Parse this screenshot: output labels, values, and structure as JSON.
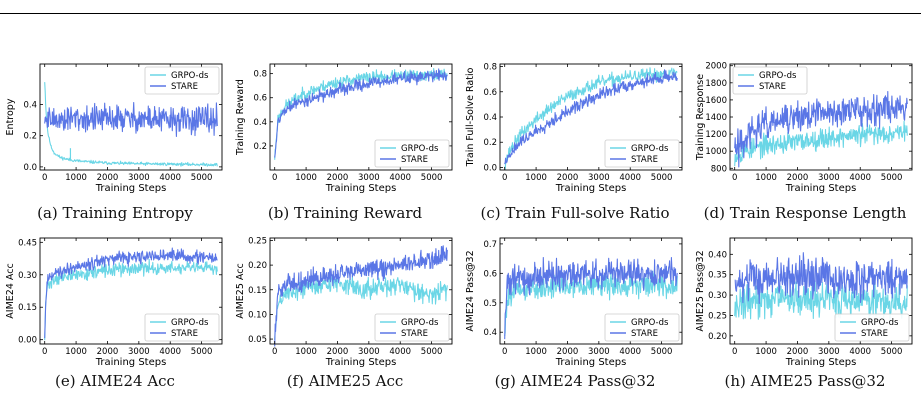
{
  "colors": {
    "grpo": "#6ad6e6",
    "stare": "#5a76e6"
  },
  "panels": [
    {
      "caption": "(a) Training Entropy",
      "chart_data": {
        "type": "line",
        "xlabel": "Training Steps",
        "ylabel": "Entropy",
        "xlim": [
          -150,
          5650
        ],
        "ylim": [
          -0.02,
          0.66
        ],
        "xticks": [
          0,
          1000,
          2000,
          3000,
          4000,
          5000
        ],
        "yticks": [
          0.0,
          0.2,
          0.4
        ],
        "ytick_labels": [
          "0.0",
          "0.2",
          "0.4"
        ],
        "legend": "top-right",
        "noise_seed": 11,
        "series": [
          {
            "name": "GRPO-ds",
            "x": [
              0,
              40,
              100,
              200,
              300,
              500,
              800,
              1200,
              2000,
              3000,
              4000,
              5000,
              5500
            ],
            "y": [
              0.55,
              0.36,
              0.22,
              0.13,
              0.09,
              0.06,
              0.045,
              0.035,
              0.025,
              0.02,
              0.018,
              0.015,
              0.014
            ],
            "noise": 0.006,
            "spike": {
              "x": 820,
              "y": 0.12
            }
          },
          {
            "name": "STARE",
            "x": [
              0,
              100,
              1000,
              2000,
              3000,
              4000,
              5000,
              5500
            ],
            "y": [
              0.3,
              0.3,
              0.31,
              0.31,
              0.31,
              0.3,
              0.3,
              0.3
            ],
            "noise": 0.055
          }
        ]
      }
    },
    {
      "caption": "(b) Training Reward",
      "chart_data": {
        "type": "line",
        "xlabel": "Training Steps",
        "ylabel": "Training Reward",
        "xlim": [
          -150,
          5650
        ],
        "ylim": [
          0,
          0.88
        ],
        "xticks": [
          0,
          1000,
          2000,
          3000,
          4000,
          5000
        ],
        "yticks": [
          0.2,
          0.4,
          0.6,
          0.8
        ],
        "ytick_labels": [
          "0.2",
          "0.4",
          "0.6",
          "0.8"
        ],
        "legend": "bottom-right",
        "noise_seed": 23,
        "series": [
          {
            "name": "GRPO-ds",
            "x": [
              0,
              100,
              300,
              600,
              1000,
              1500,
              2000,
              2500,
              3000,
              4000,
              5000,
              5500
            ],
            "y": [
              0.1,
              0.42,
              0.52,
              0.58,
              0.64,
              0.69,
              0.73,
              0.75,
              0.77,
              0.78,
              0.79,
              0.79
            ],
            "noise": 0.03
          },
          {
            "name": "STARE",
            "x": [
              0,
              100,
              300,
              600,
              1000,
              1500,
              2000,
              2500,
              3000,
              4000,
              5000,
              5500
            ],
            "y": [
              0.1,
              0.4,
              0.49,
              0.54,
              0.58,
              0.62,
              0.66,
              0.69,
              0.72,
              0.76,
              0.78,
              0.79
            ],
            "noise": 0.03
          }
        ]
      }
    },
    {
      "caption": "(c) Train Full-solve Ratio",
      "chart_data": {
        "type": "line",
        "xlabel": "Training Steps",
        "ylabel": "Train Full-Solve Ratio",
        "xlim": [
          -150,
          5650
        ],
        "ylim": [
          -0.02,
          0.82
        ],
        "xticks": [
          0,
          1000,
          2000,
          3000,
          4000,
          5000
        ],
        "yticks": [
          0.0,
          0.2,
          0.4,
          0.6,
          0.8
        ],
        "ytick_labels": [
          "0.0",
          "0.2",
          "0.4",
          "0.6",
          "0.8"
        ],
        "legend": "bottom-right",
        "noise_seed": 37,
        "series": [
          {
            "name": "GRPO-ds",
            "x": [
              0,
              200,
              500,
              1000,
              1500,
              2000,
              2500,
              3000,
              3500,
              4000,
              5000,
              5500
            ],
            "y": [
              0.03,
              0.15,
              0.26,
              0.38,
              0.48,
              0.56,
              0.62,
              0.67,
              0.7,
              0.72,
              0.74,
              0.75
            ],
            "noise": 0.03
          },
          {
            "name": "STARE",
            "x": [
              0,
              200,
              500,
              1000,
              1500,
              2000,
              2500,
              3000,
              3500,
              4000,
              5000,
              5500
            ],
            "y": [
              0.03,
              0.12,
              0.2,
              0.29,
              0.37,
              0.44,
              0.51,
              0.57,
              0.62,
              0.66,
              0.71,
              0.73
            ],
            "noise": 0.03
          }
        ]
      }
    },
    {
      "caption": "(d) Train Response Length",
      "chart_data": {
        "type": "line",
        "xlabel": "Training Steps",
        "ylabel": "Training Response",
        "xlim": [
          -150,
          5650
        ],
        "ylim": [
          780,
          2020
        ],
        "xticks": [
          0,
          1000,
          2000,
          3000,
          4000,
          5000
        ],
        "yticks": [
          800,
          1000,
          1200,
          1400,
          1600,
          1800,
          2000
        ],
        "ytick_labels": [
          "800",
          "1000",
          "1200",
          "1400",
          "1600",
          "1800",
          "2000"
        ],
        "legend": "top-left",
        "noise_seed": 53,
        "series": [
          {
            "name": "GRPO-ds",
            "x": [
              0,
              300,
              1000,
              2000,
              3000,
              4000,
              5000,
              5500
            ],
            "y": [
              950,
              1000,
              1070,
              1110,
              1160,
              1190,
              1220,
              1240
            ],
            "noise": 75
          },
          {
            "name": "STARE",
            "x": [
              0,
              300,
              800,
              1500,
              2500,
              3500,
              4500,
              5500
            ],
            "y": [
              980,
              1150,
              1280,
              1360,
              1430,
              1470,
              1500,
              1520
            ],
            "noise": 110
          }
        ]
      }
    },
    {
      "caption": "(e) AIME24 Acc",
      "chart_data": {
        "type": "line",
        "xlabel": "Training Steps",
        "ylabel": "AIME24 Acc",
        "xlim": [
          -150,
          5650
        ],
        "ylim": [
          -0.02,
          0.47
        ],
        "xticks": [
          0,
          1000,
          2000,
          3000,
          4000,
          5000
        ],
        "yticks": [
          0.0,
          0.15,
          0.3,
          0.45
        ],
        "ytick_labels": [
          "0.00",
          "0.15",
          "0.30",
          "0.45"
        ],
        "legend": "bottom-right",
        "noise_seed": 71,
        "series": [
          {
            "name": "GRPO-ds",
            "x": [
              0,
              40,
              100,
              300,
              1000,
              2000,
              3000,
              4000,
              5000,
              5500
            ],
            "y": [
              0.0,
              0.2,
              0.25,
              0.28,
              0.3,
              0.32,
              0.33,
              0.33,
              0.33,
              0.33
            ],
            "noise": 0.018
          },
          {
            "name": "STARE",
            "x": [
              0,
              40,
              100,
              300,
              1000,
              2000,
              3000,
              4000,
              5000,
              5500
            ],
            "y": [
              0.0,
              0.22,
              0.28,
              0.31,
              0.34,
              0.37,
              0.38,
              0.39,
              0.38,
              0.37
            ],
            "noise": 0.018
          }
        ]
      }
    },
    {
      "caption": "(f) AIME25 Acc",
      "chart_data": {
        "type": "line",
        "xlabel": "Training Steps",
        "ylabel": "AIME25 Acc",
        "xlim": [
          -150,
          5650
        ],
        "ylim": [
          0.04,
          0.255
        ],
        "xticks": [
          0,
          1000,
          2000,
          3000,
          4000,
          5000
        ],
        "yticks": [
          0.05,
          0.1,
          0.15,
          0.2,
          0.25
        ],
        "ytick_labels": [
          "0.05",
          "0.10",
          "0.15",
          "0.20",
          "0.25"
        ],
        "legend": "bottom-right",
        "noise_seed": 89,
        "series": [
          {
            "name": "GRPO-ds",
            "x": [
              0,
              100,
              300,
              1000,
              2000,
              2500,
              3000,
              4000,
              5000,
              5500
            ],
            "y": [
              0.05,
              0.12,
              0.14,
              0.155,
              0.165,
              0.155,
              0.15,
              0.16,
              0.14,
              0.15
            ],
            "noise": 0.012
          },
          {
            "name": "STARE",
            "x": [
              0,
              100,
              300,
              1000,
              2000,
              3000,
              4000,
              5000,
              5500
            ],
            "y": [
              0.05,
              0.14,
              0.16,
              0.17,
              0.18,
              0.19,
              0.2,
              0.21,
              0.22
            ],
            "noise": 0.012
          }
        ]
      }
    },
    {
      "caption": "(g) AIME24 Pass@32",
      "chart_data": {
        "type": "line",
        "xlabel": "Training Steps",
        "ylabel": "AIME24 Pass@32",
        "xlim": [
          -150,
          5650
        ],
        "ylim": [
          0.36,
          0.72
        ],
        "xticks": [
          0,
          1000,
          2000,
          3000,
          4000,
          5000
        ],
        "yticks": [
          0.4,
          0.5,
          0.6,
          0.7
        ],
        "ytick_labels": [
          "0.4",
          "0.5",
          "0.6",
          "0.7"
        ],
        "legend": "bottom-right",
        "noise_seed": 101,
        "series": [
          {
            "name": "GRPO-ds",
            "x": [
              0,
              60,
              200,
              1000,
              2000,
              3000,
              4000,
              5000,
              5500
            ],
            "y": [
              0.38,
              0.5,
              0.54,
              0.55,
              0.56,
              0.56,
              0.56,
              0.56,
              0.56
            ],
            "noise": 0.025
          },
          {
            "name": "STARE",
            "x": [
              0,
              60,
              200,
              1000,
              2000,
              3000,
              4000,
              5000,
              5500
            ],
            "y": [
              0.4,
              0.55,
              0.58,
              0.59,
              0.6,
              0.6,
              0.6,
              0.6,
              0.6
            ],
            "noise": 0.03
          }
        ]
      }
    },
    {
      "caption": "(h) AIME25 Pass@32",
      "chart_data": {
        "type": "line",
        "xlabel": "Training Steps",
        "ylabel": "AIME25 Pass@32",
        "xlim": [
          -150,
          5650
        ],
        "ylim": [
          0.18,
          0.44
        ],
        "xticks": [
          0,
          1000,
          2000,
          3000,
          4000,
          5000
        ],
        "yticks": [
          0.2,
          0.25,
          0.3,
          0.35,
          0.4
        ],
        "ytick_labels": [
          "0.20",
          "0.25",
          "0.30",
          "0.35",
          "0.40"
        ],
        "legend": "bottom-right",
        "noise_seed": 131,
        "series": [
          {
            "name": "GRPO-ds",
            "x": [
              0,
              100,
              1000,
              2000,
              3000,
              4000,
              5000,
              5500
            ],
            "y": [
              0.27,
              0.28,
              0.29,
              0.29,
              0.29,
              0.29,
              0.28,
              0.28
            ],
            "noise": 0.025
          },
          {
            "name": "STARE",
            "x": [
              0,
              100,
              1000,
              2000,
              3000,
              4000,
              5000,
              5500
            ],
            "y": [
              0.3,
              0.33,
              0.34,
              0.34,
              0.34,
              0.34,
              0.34,
              0.34
            ],
            "noise": 0.03
          }
        ]
      }
    }
  ]
}
